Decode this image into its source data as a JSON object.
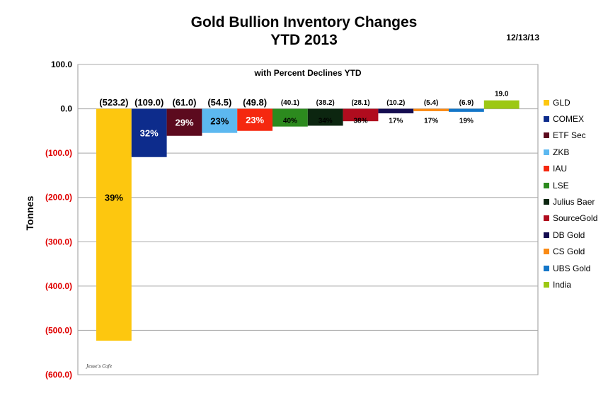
{
  "chart_data": {
    "type": "bar",
    "title": "Gold Bullion Inventory Changes",
    "title_line2": "YTD 2013",
    "subtitle": "with Percent Declines YTD",
    "date": "12/13/13",
    "ylabel": "Tonnes",
    "xlabel": "",
    "watermark": "Jesse's Cafe",
    "ylim": [
      -600,
      100
    ],
    "yticks": [
      {
        "value": 100,
        "label": "100.0"
      },
      {
        "value": 0,
        "label": "0.0"
      },
      {
        "value": -100,
        "label": "(100.0)"
      },
      {
        "value": -200,
        "label": "(200.0)"
      },
      {
        "value": -300,
        "label": "(300.0)"
      },
      {
        "value": -400,
        "label": "(400.0)"
      },
      {
        "value": -500,
        "label": "(500.0)"
      },
      {
        "value": -600,
        "label": "(600.0)"
      }
    ],
    "grid": true,
    "legend_position": "right",
    "series": [
      {
        "name": "GLD",
        "value": -523.2,
        "label": "(523.2)",
        "percent": "39%",
        "color": "#FDC70F"
      },
      {
        "name": "COMEX",
        "value": -109.0,
        "label": "(109.0)",
        "percent": "32%",
        "color": "#0D2C8C"
      },
      {
        "name": "ETF Sec",
        "value": -61.0,
        "label": "(61.0)",
        "percent": "29%",
        "color": "#5C0A1E"
      },
      {
        "name": "ZKB",
        "value": -54.5,
        "label": "(54.5)",
        "percent": "23%",
        "color": "#5CB8F0"
      },
      {
        "name": "IAU",
        "value": -49.8,
        "label": "(49.8)",
        "percent": "23%",
        "color": "#F5280F"
      },
      {
        "name": "LSE",
        "value": -40.1,
        "label": "(40.1)",
        "percent": "40%",
        "color": "#2C8A1E"
      },
      {
        "name": "Julius Baer",
        "value": -38.2,
        "label": "(38.2)",
        "percent": "34%",
        "color": "#0C2610"
      },
      {
        "name": "SourceGold",
        "value": -28.1,
        "label": "(28.1)",
        "percent": "38%",
        "color": "#B00C1E"
      },
      {
        "name": "DB Gold",
        "value": -10.2,
        "label": "(10.2)",
        "percent": "17%",
        "color": "#140C50"
      },
      {
        "name": "CS Gold",
        "value": -5.4,
        "label": "(5.4)",
        "percent": "17%",
        "color": "#FA8A14"
      },
      {
        "name": "UBS Gold",
        "value": -6.9,
        "label": "(6.9)",
        "percent": "19%",
        "color": "#1476C8"
      },
      {
        "name": "India",
        "value": 19.0,
        "label": "19.0",
        "percent": "",
        "color": "#9CC814"
      }
    ]
  }
}
